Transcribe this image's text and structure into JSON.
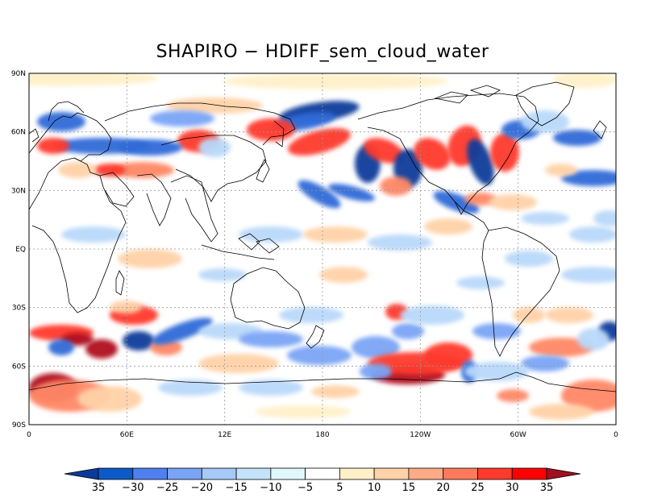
{
  "title": "SHAPIRO − HDIFF_sem_cloud_water",
  "lat_labels": [
    "90N",
    "60N",
    "30N",
    "EQ",
    "30S",
    "60S",
    "90S"
  ],
  "lon_labels": [
    "0",
    "60E",
    "12E",
    "180",
    "120W",
    "60W",
    "0"
  ],
  "colorbar": {
    "labels": [
      "35",
      "−30",
      "−25",
      "−20",
      "−15",
      "−10",
      "−5",
      "5",
      "10",
      "15",
      "20",
      "25",
      "30",
      "35"
    ],
    "colors": [
      "#0a3b9a",
      "#0c5ac8",
      "#5080f0",
      "#7aa4f5",
      "#a6c9f8",
      "#c4e3fa",
      "#e0f8fc",
      "#ffffff",
      "#fff0c8",
      "#ffd2a8",
      "#ffac86",
      "#ff7a5c",
      "#ff3a2c",
      "#ff0000",
      "#a01020"
    ]
  },
  "map_colors": {
    "strong_pos": "#b0101e",
    "pos": "#ff3a2c",
    "med_pos": "#ff8866",
    "light_pos": "#ffd2a8",
    "faint_pos": "#fff0c8",
    "strong_neg": "#0a3b9a",
    "neg": "#2e6ad8",
    "med_neg": "#7aa4f5",
    "light_neg": "#b8d8fa",
    "faint_neg": "#e0f8fc"
  }
}
